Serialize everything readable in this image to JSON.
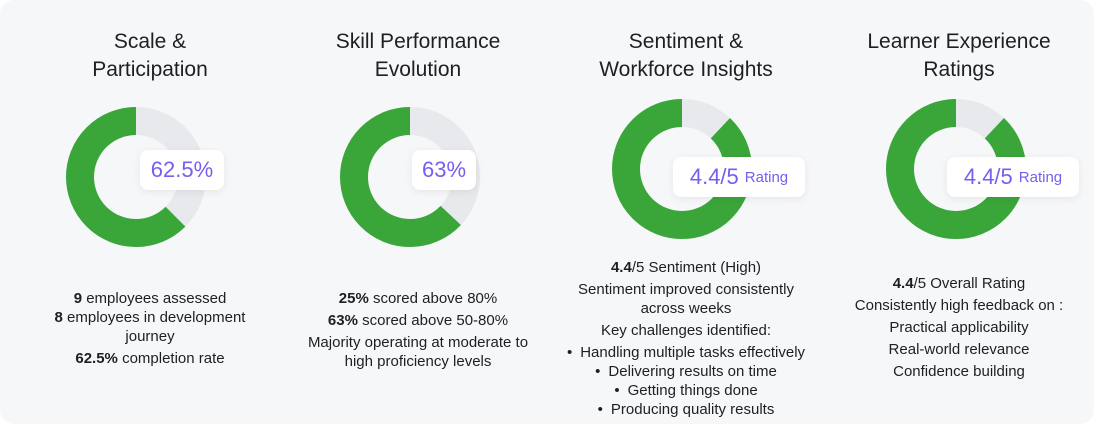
{
  "columns": [
    {
      "title": [
        "Scale &",
        "Participation"
      ],
      "badge": {
        "value": "62.5%",
        "unit": ""
      },
      "donut": {
        "filled_fraction": 0.625,
        "filled_color": "#3aa63a",
        "track_color": "#e7e9ec"
      },
      "lines": [
        {
          "bold": "9",
          "rest": " employees assessed"
        },
        {
          "bold": "8",
          "rest": " employees in development"
        },
        {
          "bold": "",
          "rest": "journey"
        },
        {
          "bold": "62.5%",
          "rest": " completion rate"
        }
      ]
    },
    {
      "title": [
        "Skill Performance",
        "Evolution"
      ],
      "badge": {
        "value": "63%",
        "unit": ""
      },
      "donut": {
        "filled_fraction": 0.63,
        "filled_color": "#3aa63a",
        "track_color": "#e7e9ec"
      },
      "lines": [
        {
          "bold": "25%",
          "rest": " scored above 80%"
        },
        {
          "bold": "63%",
          "rest": " scored above 50-80%"
        },
        {
          "bold": "",
          "rest": "Majority operating at moderate to"
        },
        {
          "bold": "",
          "rest": "high proficiency levels"
        }
      ]
    },
    {
      "title": [
        "Sentiment &",
        "Workforce Insights"
      ],
      "badge": {
        "value": "4.4/5",
        "unit": "Rating"
      },
      "donut": {
        "filled_fraction": 0.88,
        "filled_color": "#3aa63a",
        "track_color": "#e7e9ec"
      },
      "lines": [
        {
          "bold": "4.4",
          "rest": "/5 Sentiment (High)"
        },
        {
          "bold": "",
          "rest": "Sentiment improved consistently"
        },
        {
          "bold": "",
          "rest": "across weeks"
        },
        {
          "bold": "",
          "rest": "Key challenges identified:"
        },
        {
          "bold": "",
          "rest": "Handling multiple tasks effectively",
          "bullet": true
        },
        {
          "bold": "",
          "rest": "Delivering results on time",
          "bullet": true
        },
        {
          "bold": "",
          "rest": "Getting things done",
          "bullet": true
        },
        {
          "bold": "",
          "rest": "Producing quality results",
          "bullet": true
        }
      ]
    },
    {
      "title": [
        "Learner Experience",
        "Ratings"
      ],
      "badge": {
        "value": "4.4/5",
        "unit": "Rating"
      },
      "donut": {
        "filled_fraction": 0.88,
        "filled_color": "#3aa63a",
        "track_color": "#e7e9ec"
      },
      "lines": [
        {
          "bold": "4.4",
          "rest": "/5 Overall Rating"
        },
        {
          "bold": "",
          "rest": "Consistently high feedback on :"
        },
        {
          "bold": "",
          "rest": "Practical applicability"
        },
        {
          "bold": "",
          "rest": "Real-world relevance"
        },
        {
          "bold": "",
          "rest": "Confidence building"
        }
      ]
    }
  ]
}
